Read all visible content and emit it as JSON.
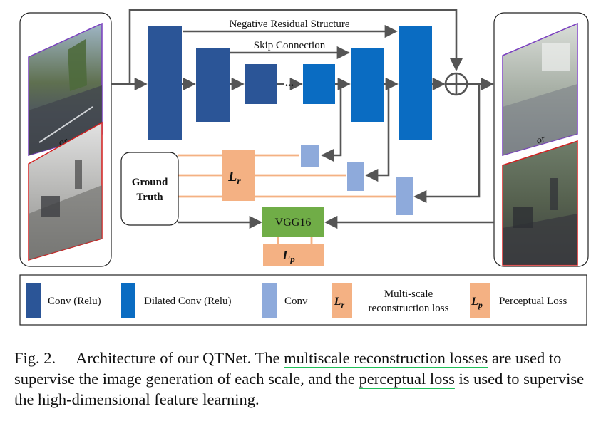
{
  "diagram": {
    "labels": {
      "negative_residual": "Negative Residual Structure",
      "skip_connection": "Skip Connection",
      "ellipsis": "...",
      "or_top": "or",
      "or_bottom": "or",
      "ground_truth_line1": "Ground",
      "ground_truth_line2": "Truth",
      "loss_r": "L",
      "loss_r_sub": "r",
      "vgg": "VGG16",
      "loss_p": "L",
      "loss_p_sub": "p"
    },
    "legend": {
      "conv_relu": "Conv (Relu)",
      "dilated_conv_relu": "Dilated Conv (Relu)",
      "conv": "Conv",
      "loss_r_symbol": "L",
      "loss_r_sub": "r",
      "multiscale_line1": "Multi-scale",
      "multiscale_line2": "reconstruction loss",
      "loss_p_symbol": "L",
      "loss_p_sub": "p",
      "perceptual": "Perceptual Loss"
    },
    "colors": {
      "conv_relu": "#2b5597",
      "dilated_conv": "#0a6cc2",
      "conv": "#8eaadb",
      "loss": "#f4b183",
      "vgg": "#70ad47",
      "arrow": "#555555",
      "input_frame_top": "#7a3fc0",
      "input_frame_bottom": "#d42020"
    }
  },
  "caption": {
    "prefix": "Fig. 2.",
    "part1": "Architecture of our QTNet. The ",
    "highlight1": "multiscale reconstruction losses",
    "part2": " are used to supervise the image generation of each scale, and the ",
    "highlight2": "perceptual loss",
    "part3": " is used to supervise the high-dimensional feature learning."
  }
}
